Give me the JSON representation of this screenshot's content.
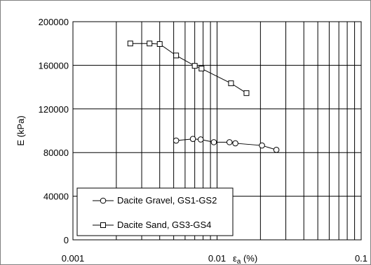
{
  "chart_data": {
    "type": "scatter",
    "title": "",
    "xlabel": "ε",
    "xlabel_sub": "a",
    "xlabel_suffix": " (%)",
    "ylabel": "E (kPa)",
    "xscale": "log",
    "xlim": [
      0.001,
      0.1
    ],
    "ylim": [
      0,
      200000
    ],
    "grid": true,
    "x_tick_labels": [
      "0.001",
      "0.01",
      "0.1"
    ],
    "y_tick_labels": [
      "0",
      "40000",
      "80000",
      "120000",
      "160000",
      "200000"
    ],
    "legend_position": "bottom-left",
    "series": [
      {
        "name": "Dacite Gravel, GS1-GS2",
        "marker": "circle",
        "color": "#000000",
        "x": [
          0.0052,
          0.0068,
          0.0077,
          0.0095,
          0.0122,
          0.0134,
          0.0205,
          0.0258
        ],
        "y": [
          91000,
          92500,
          92000,
          89500,
          89500,
          88500,
          86500,
          82500
        ]
      },
      {
        "name": "Dacite Sand, GS3-GS4",
        "marker": "square",
        "color": "#000000",
        "x": [
          0.0025,
          0.0034,
          0.004,
          0.0052,
          0.007,
          0.0078,
          0.0125,
          0.016
        ],
        "y": [
          180000,
          180000,
          179500,
          169000,
          159500,
          157000,
          143500,
          134500
        ]
      }
    ]
  }
}
